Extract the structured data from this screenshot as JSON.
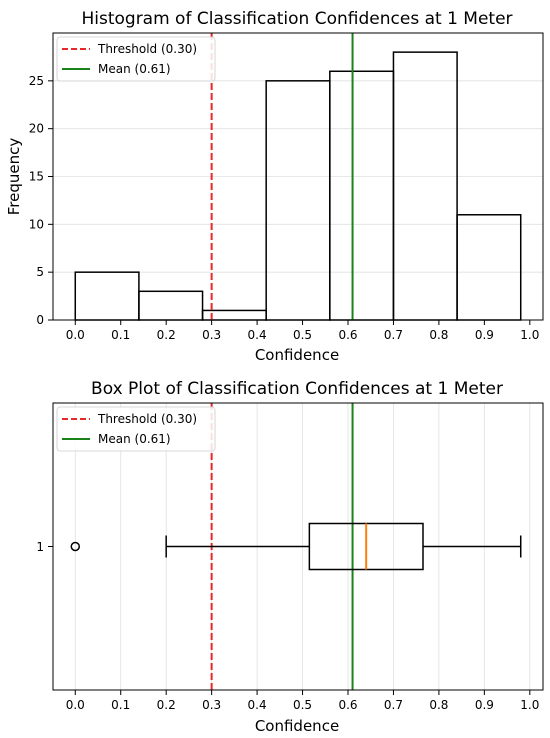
{
  "chart_data": [
    {
      "type": "bar",
      "title": "Histogram of Classification Confidences at 1 Meter",
      "xlabel": "Confidence",
      "ylabel": "Frequency",
      "xlim": [
        -0.049,
        1.029
      ],
      "ylim": [
        0,
        30
      ],
      "xticks": [
        0.0,
        0.1,
        0.2,
        0.3,
        0.4,
        0.5,
        0.6,
        0.7,
        0.8,
        0.9,
        1.0
      ],
      "xtick_labels": [
        "0.0",
        "0.1",
        "0.2",
        "0.3",
        "0.4",
        "0.5",
        "0.6",
        "0.7",
        "0.8",
        "0.9",
        "1.0"
      ],
      "yticks": [
        0,
        5,
        10,
        15,
        20,
        25
      ],
      "ytick_labels": [
        "0",
        "5",
        "10",
        "15",
        "20",
        "25"
      ],
      "grid": "horizontal",
      "bins": [
        {
          "x0": 0.0,
          "x1": 0.14,
          "count": 5
        },
        {
          "x0": 0.14,
          "x1": 0.28,
          "count": 3
        },
        {
          "x0": 0.28,
          "x1": 0.42,
          "count": 1
        },
        {
          "x0": 0.42,
          "x1": 0.56,
          "count": 25
        },
        {
          "x0": 0.56,
          "x1": 0.7,
          "count": 26
        },
        {
          "x0": 0.7,
          "x1": 0.84,
          "count": 28
        },
        {
          "x0": 0.84,
          "x1": 0.98,
          "count": 11
        }
      ],
      "lines": [
        {
          "name": "Threshold (0.30)",
          "x": 0.3,
          "color": "#e8292a",
          "style": "dashed"
        },
        {
          "name": "Mean (0.61)",
          "x": 0.61,
          "color": "#198219",
          "style": "solid"
        }
      ],
      "legend": "top-left"
    },
    {
      "type": "box",
      "title": "Box Plot of Classification Confidences at 1 Meter",
      "xlabel": "Confidence",
      "ylabel": "",
      "xlim": [
        -0.049,
        1.029
      ],
      "xticks": [
        0.0,
        0.1,
        0.2,
        0.3,
        0.4,
        0.5,
        0.6,
        0.7,
        0.8,
        0.9,
        1.0
      ],
      "xtick_labels": [
        "0.0",
        "0.1",
        "0.2",
        "0.3",
        "0.4",
        "0.5",
        "0.6",
        "0.7",
        "0.8",
        "0.9",
        "1.0"
      ],
      "category": "1",
      "grid": "vertical",
      "box": {
        "whisker_low": 0.2,
        "q1": 0.515,
        "median": 0.64,
        "q3": 0.765,
        "whisker_high": 0.98,
        "outliers": [
          0.0
        ]
      },
      "median_color": "#ff7f0e",
      "lines": [
        {
          "name": "Threshold (0.30)",
          "x": 0.3,
          "color": "#e8292a",
          "style": "dashed"
        },
        {
          "name": "Mean (0.61)",
          "x": 0.61,
          "color": "#198219",
          "style": "solid"
        }
      ],
      "legend": "top-left"
    }
  ]
}
